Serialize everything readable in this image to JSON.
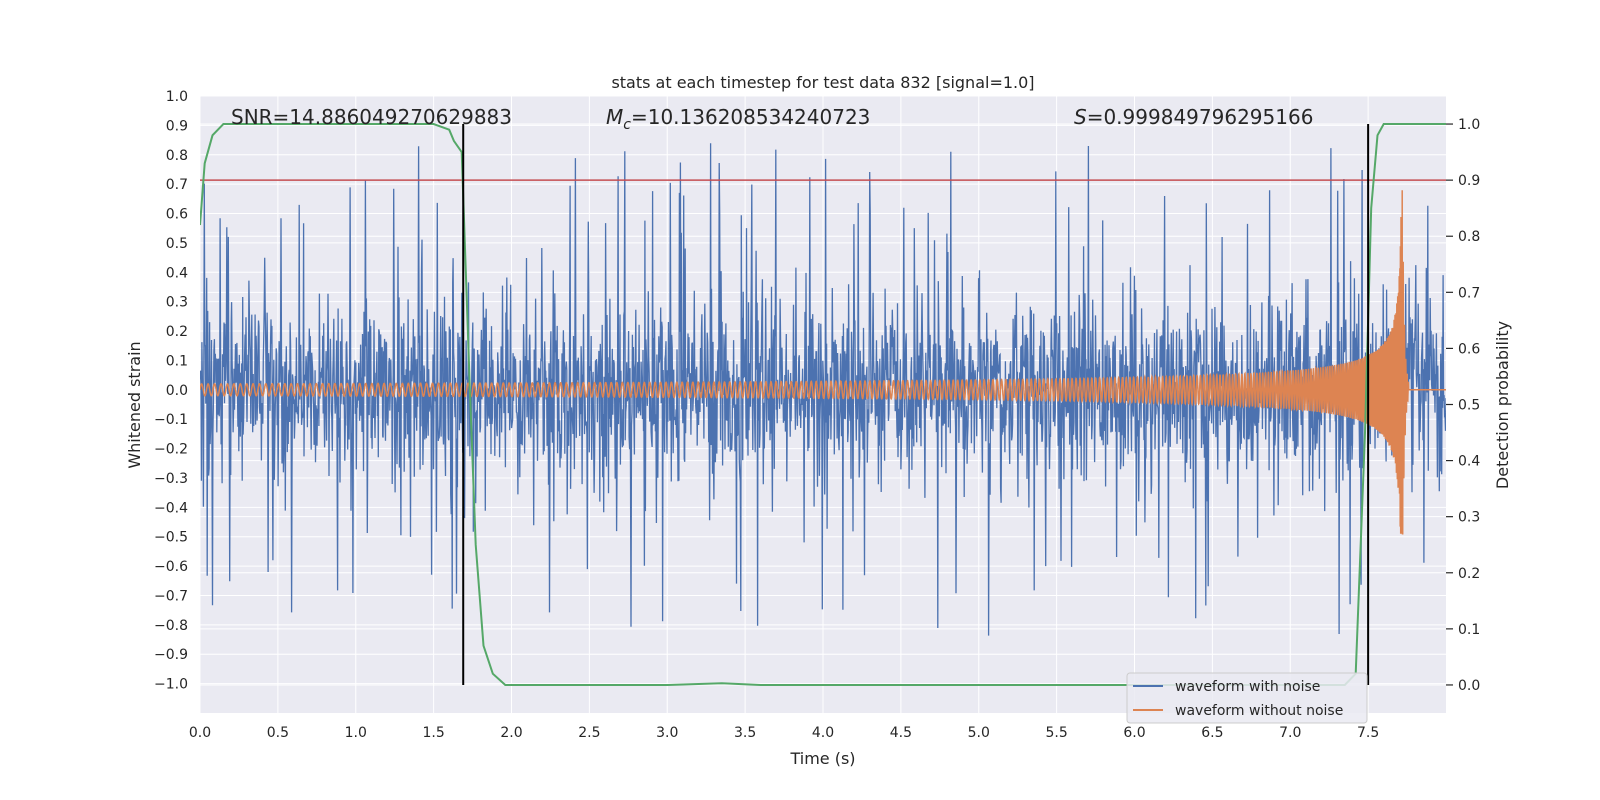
{
  "chart_data": {
    "type": "line",
    "title": "stats at each timestep for test data 832 [signal=1.0]",
    "xlabel": "Time (s)",
    "ylabel": "Whitened strain",
    "y2label": "Detection probability",
    "xlim": [
      0.0,
      8.0
    ],
    "ylim": [
      -1.1,
      1.0
    ],
    "y2lim": [
      -0.05,
      1.05
    ],
    "xticks": [
      "0.0",
      "0.5",
      "1.0",
      "1.5",
      "2.0",
      "2.5",
      "3.0",
      "3.5",
      "4.0",
      "4.5",
      "5.0",
      "5.5",
      "6.0",
      "6.5",
      "7.0",
      "7.5"
    ],
    "yticks": [
      "1.0",
      "0.9",
      "0.8",
      "0.7",
      "0.6",
      "0.5",
      "0.4",
      "0.3",
      "0.2",
      "0.1",
      "0.0",
      "−0.1",
      "−0.2",
      "−0.3",
      "−0.4",
      "−0.5",
      "−0.6",
      "−0.7",
      "−0.8",
      "−0.9",
      "−1.0"
    ],
    "y2ticks": [
      "1.0",
      "0.9",
      "0.8",
      "0.7",
      "0.6",
      "0.5",
      "0.4",
      "0.3",
      "0.2",
      "0.1",
      "0.0"
    ],
    "grid": true,
    "legend_position": "lower-right",
    "annotations": {
      "snr": "SNR=14.886049270629883",
      "mc_symbol": "M",
      "mc_sub": "c",
      "mc_value": "=10.136208534240723",
      "s_symbol": "S",
      "s_value": "=0.999849796295166"
    },
    "series": [
      {
        "name": "waveform with noise",
        "color": "#4c72b0",
        "axis": "left",
        "description_values": {
          "noise_envelope": 0.33,
          "max": 0.84,
          "min": -1.0
        }
      },
      {
        "name": "waveform without noise",
        "color": "#dd8452",
        "axis": "left",
        "description_values": {
          "start_amplitude": 0.02,
          "peak_time": 7.72,
          "peak_max": 0.68,
          "peak_min": -0.49,
          "merger_end": 7.76
        }
      },
      {
        "color": "#55a868",
        "axis": "right",
        "x": [
          0.0,
          0.03,
          0.08,
          0.15,
          0.5,
          1.0,
          1.5,
          1.6,
          1.63,
          1.68,
          1.73,
          1.77,
          1.82,
          1.88,
          1.96,
          2.5,
          3.0,
          3.35,
          3.6,
          4.0,
          5.0,
          6.0,
          7.0,
          7.2,
          7.35,
          7.42,
          7.48,
          7.52,
          7.56,
          7.6,
          7.65,
          7.7,
          8.0
        ],
        "y": [
          0.82,
          0.93,
          0.98,
          1.0,
          1.0,
          1.0,
          1.0,
          0.99,
          0.97,
          0.95,
          0.55,
          0.25,
          0.07,
          0.02,
          0.0,
          0.0,
          0.0,
          0.003,
          0.0,
          0.0,
          0.0,
          0.0,
          0.0,
          0.0,
          0.0,
          0.02,
          0.45,
          0.85,
          0.98,
          1.0,
          1.0,
          1.0,
          1.0
        ]
      }
    ],
    "threshold_line": {
      "value": 0.9,
      "axis": "right",
      "color": "#c44e52"
    },
    "vertical_lines": [
      {
        "x": 1.69,
        "color": "#000000"
      },
      {
        "x": 7.5,
        "color": "#000000"
      }
    ]
  }
}
